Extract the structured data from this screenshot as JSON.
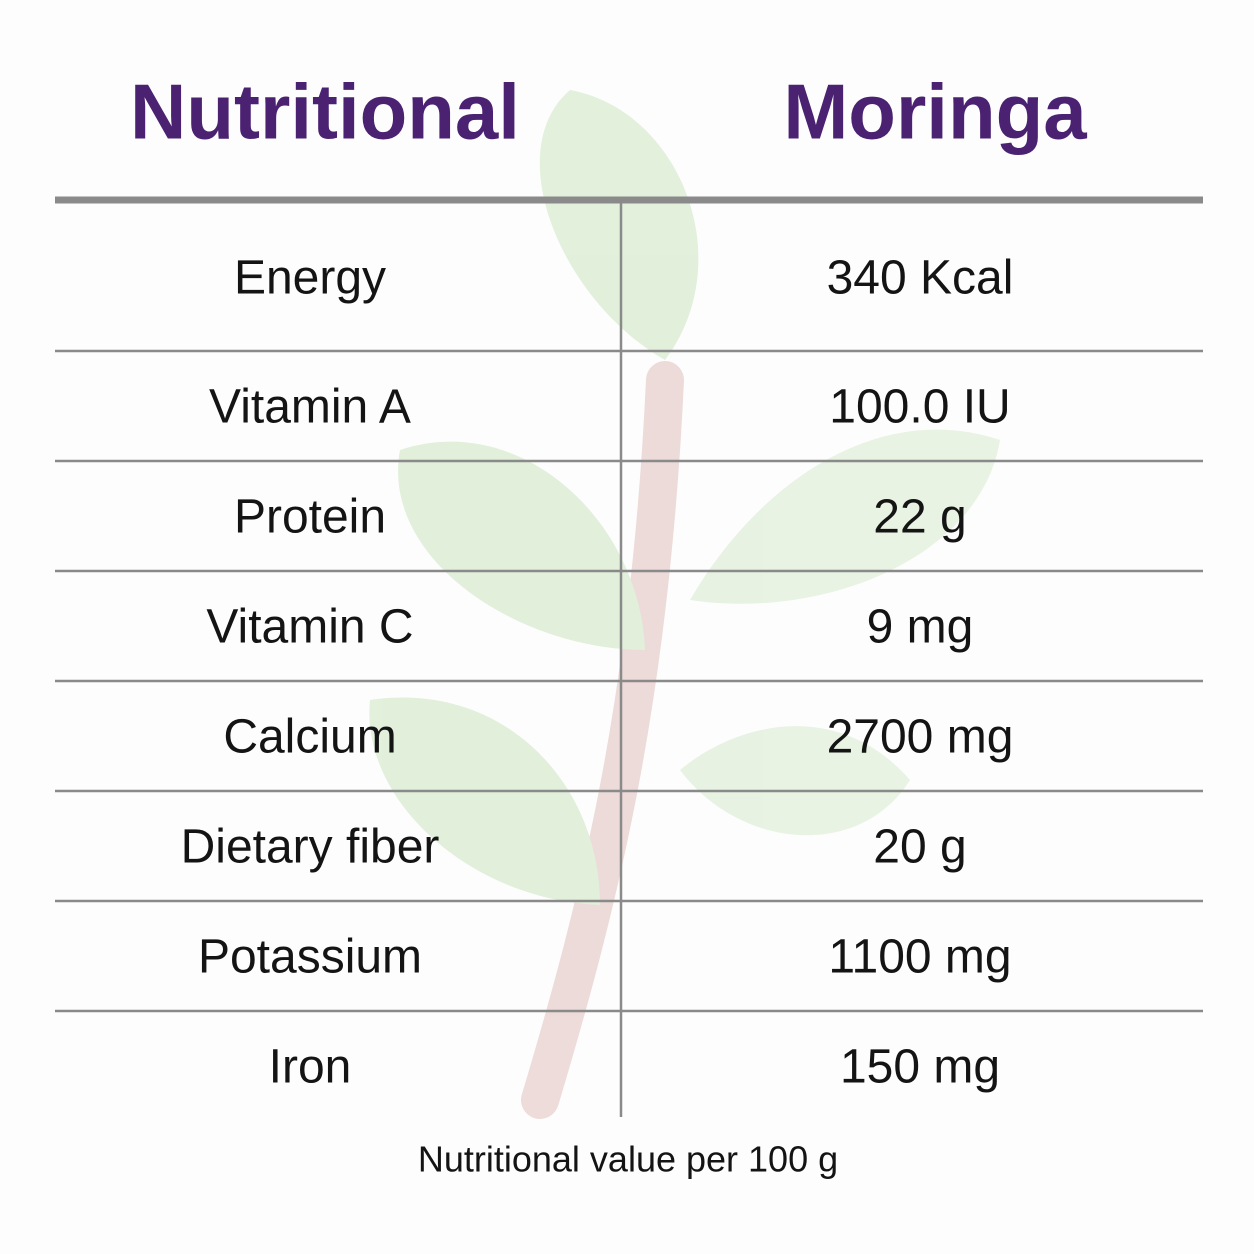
{
  "table": {
    "header": [
      "Nutritional",
      "Moringa"
    ],
    "rows": [
      [
        "Energy",
        "340 Kcal"
      ],
      [
        "Vitamin A",
        "100.0 IU"
      ],
      [
        "Protein",
        "22 g"
      ],
      [
        "Vitamin C",
        "9 mg"
      ],
      [
        "Calcium",
        "2700 mg"
      ],
      [
        "Dietary fiber",
        "20 g"
      ],
      [
        "Potassium",
        "1100 mg"
      ],
      [
        "Iron",
        "150 mg"
      ]
    ],
    "footnote": "Nutritional value per 100 g"
  }
}
